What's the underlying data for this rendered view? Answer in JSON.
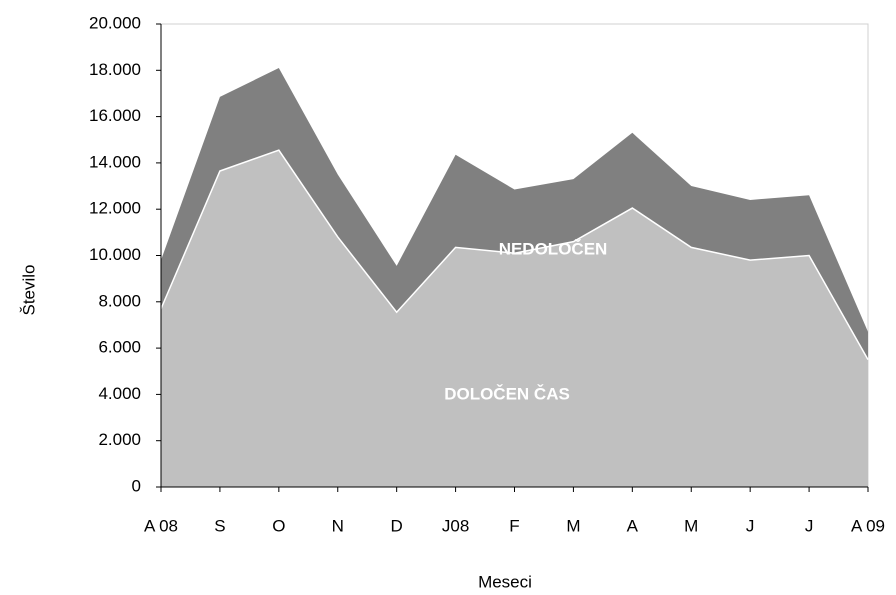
{
  "chart_data": {
    "type": "stacked_area",
    "x_label": "Meseci",
    "y_label": "Število",
    "categories": [
      "A 08",
      "S",
      "O",
      "N",
      "D",
      "J08",
      "F",
      "M",
      "A",
      "M",
      "J",
      "J",
      "A 09"
    ],
    "series": [
      {
        "name": "DOLOČEN ČAS",
        "color": "#c0c0c0",
        "values": [
          7700,
          13650,
          14550,
          10800,
          7550,
          10350,
          10100,
          10600,
          12050,
          10350,
          9800,
          10000,
          5500
        ]
      },
      {
        "name": "NEDOLOČEN",
        "color": "#808080",
        "values": [
          2100,
          3200,
          3550,
          2700,
          2000,
          4000,
          2750,
          2700,
          3250,
          2650,
          2600,
          2600,
          1200
        ]
      }
    ],
    "ylim": [
      0,
      20000
    ],
    "yticks": [
      0,
      {
        "value": 2000,
        "label": "2.000"
      },
      {
        "value": 4000,
        "label": "4.000"
      },
      {
        "value": 6000,
        "label": "6.000"
      },
      {
        "value": 8000,
        "label": "8.000"
      },
      {
        "value": 10000,
        "label": "10.000"
      },
      {
        "value": 12000,
        "label": "12.000"
      },
      {
        "value": 14000,
        "label": "14.000"
      },
      {
        "value": 16000,
        "label": "16.000"
      },
      {
        "value": 18000,
        "label": "18.000"
      },
      {
        "value": 20000,
        "label": "20.000"
      }
    ]
  }
}
